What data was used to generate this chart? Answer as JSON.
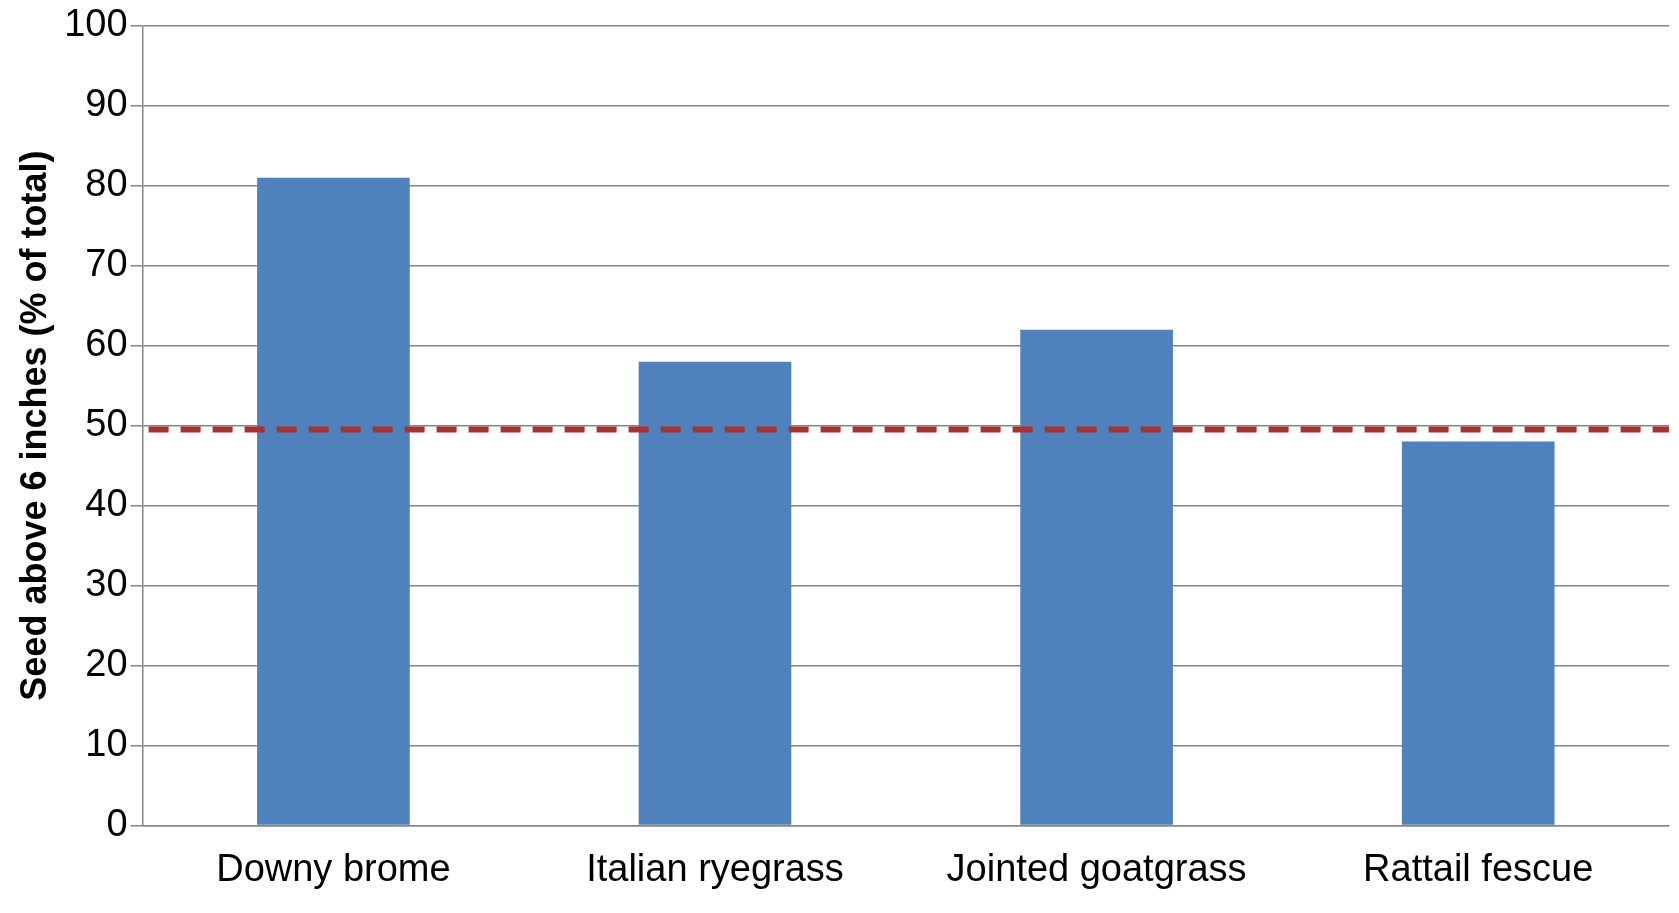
{
  "chart_data": {
    "type": "bar",
    "ylabel": "Seed above 6 inches (% of total)",
    "categories": [
      "Downy brome",
      "Italian ryegrass",
      "Jointed goatgrass",
      "Rattail fescue"
    ],
    "values": [
      81,
      58,
      62,
      48
    ],
    "color": "#4f81bd",
    "ylim": [
      0,
      100
    ],
    "yticks": [
      0,
      10,
      20,
      30,
      40,
      50,
      60,
      70,
      80,
      90,
      100
    ],
    "grid": "y",
    "legend": false,
    "ref_lines": [
      {
        "axis": "y",
        "value": 49.5,
        "color": "#a5332f",
        "line_style": "dashed"
      }
    ]
  }
}
